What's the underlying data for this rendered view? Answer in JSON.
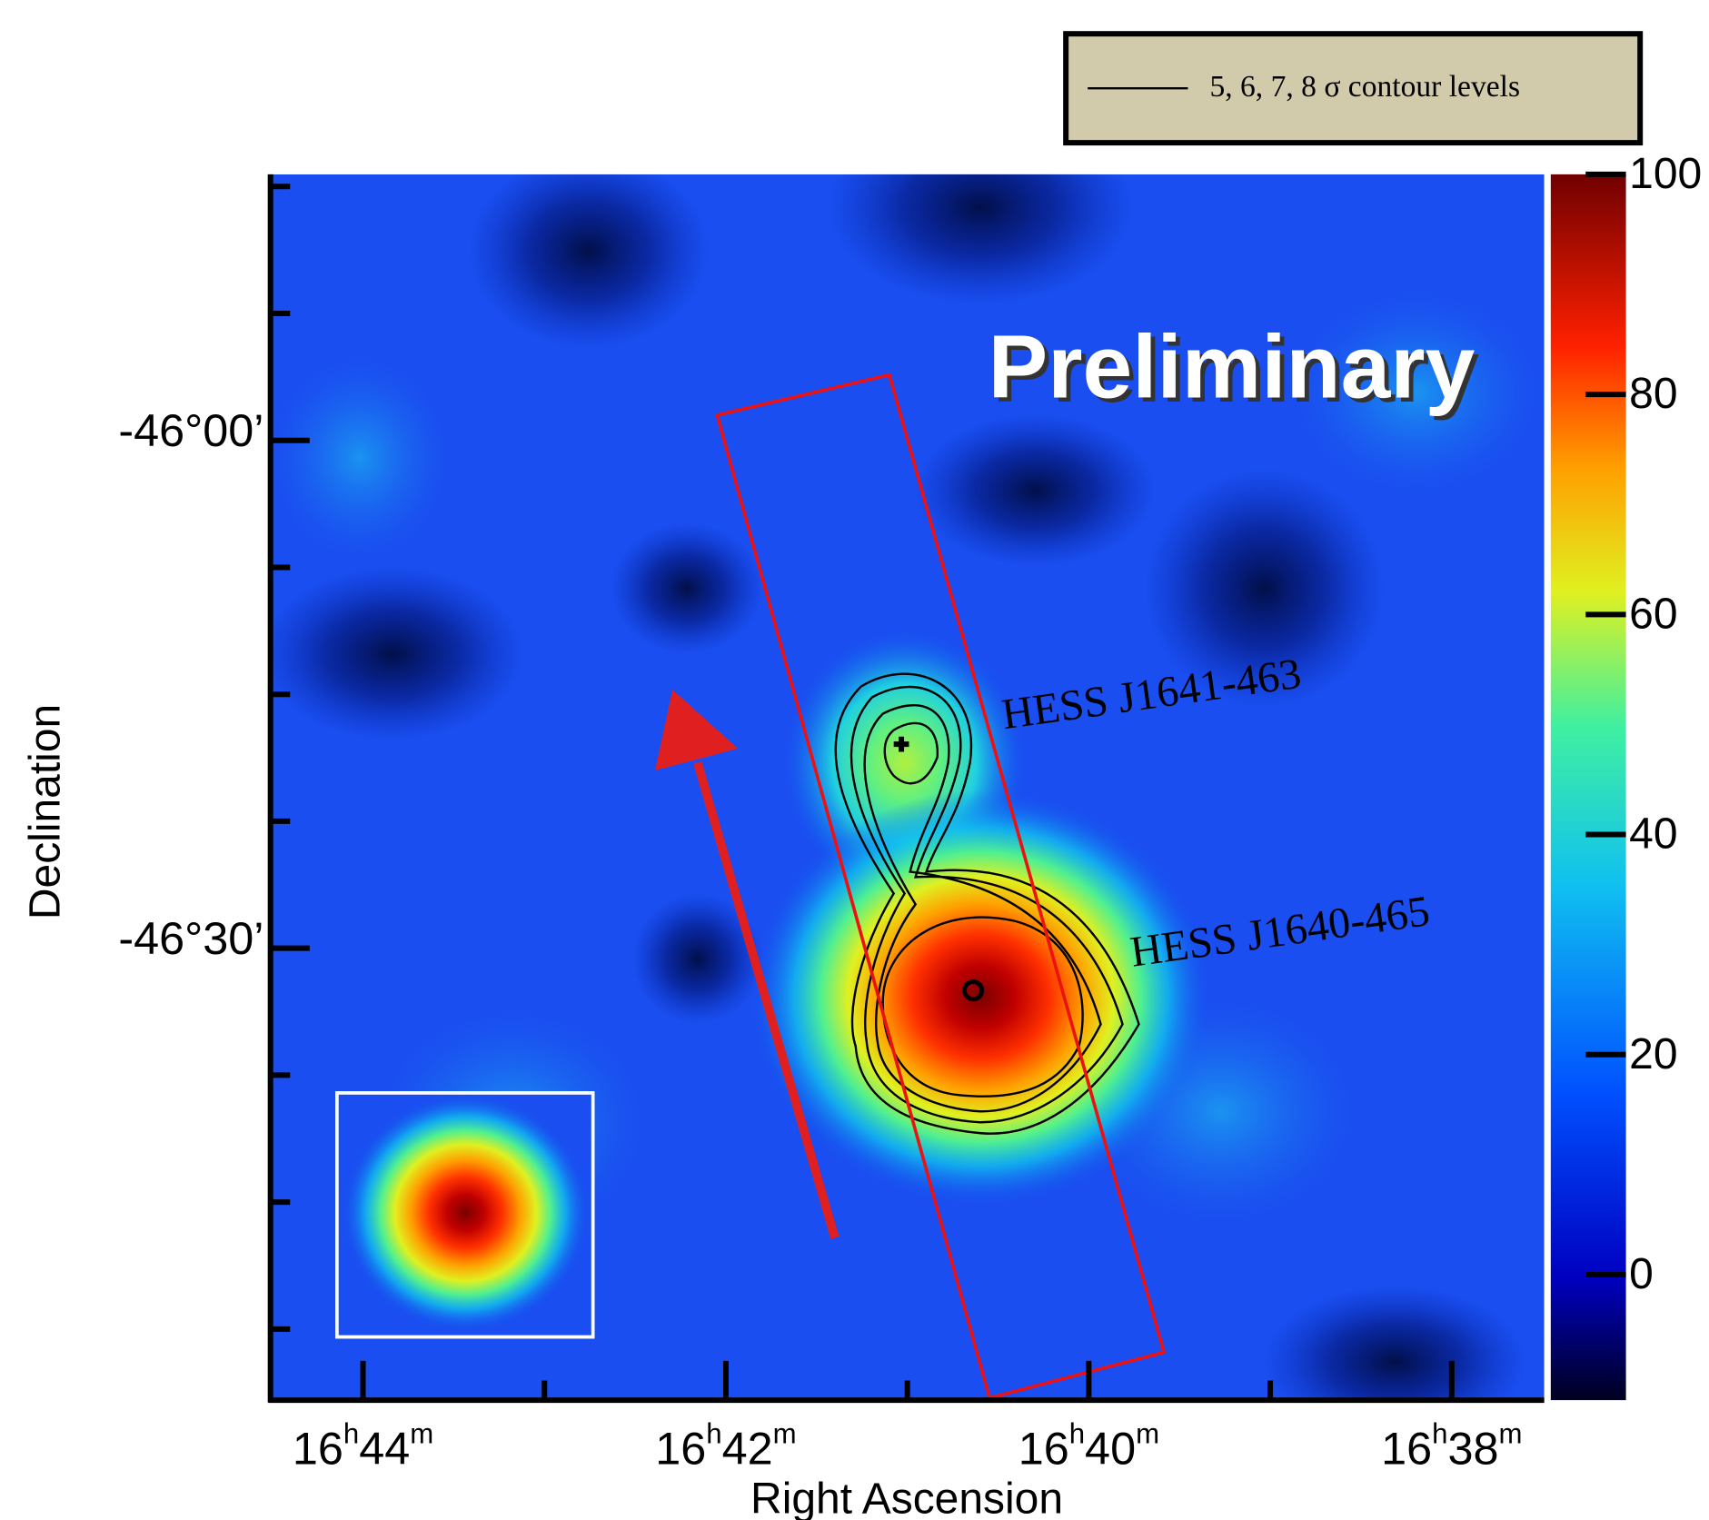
{
  "chart_data": {
    "type": "skymap",
    "x_label": "Right Ascension",
    "y_label": "Declination",
    "xlim": [
      44.51,
      37.49
    ],
    "xticks": [
      {
        "value": 44,
        "label": "16h44m"
      },
      {
        "value": 42,
        "label": "16h42m"
      },
      {
        "value": 40,
        "label": "16h40m"
      },
      {
        "value": 38,
        "label": "16h38m"
      }
    ],
    "xminorticks": [
      43,
      41,
      39
    ],
    "ylim": [
      -46.945,
      -45.738
    ],
    "yticks": [
      {
        "value": -46.0,
        "label": "-46°00’"
      },
      {
        "value": -46.5,
        "label": "-46°30’"
      }
    ],
    "yminorticks": [
      -45.75,
      -45.875,
      -46.125,
      -46.25,
      -46.375,
      -46.625,
      -46.75,
      -46.875
    ],
    "colorbar": {
      "lim": [
        -11.4,
        100
      ],
      "ticks": [
        0,
        20,
        40,
        60,
        80,
        100
      ]
    },
    "legend": {
      "label": "5, 6, 7, 8  σ contour levels"
    },
    "watermark": "Preliminary",
    "sources": [
      "HESS J1641-463",
      "HESS J1640-465"
    ]
  }
}
